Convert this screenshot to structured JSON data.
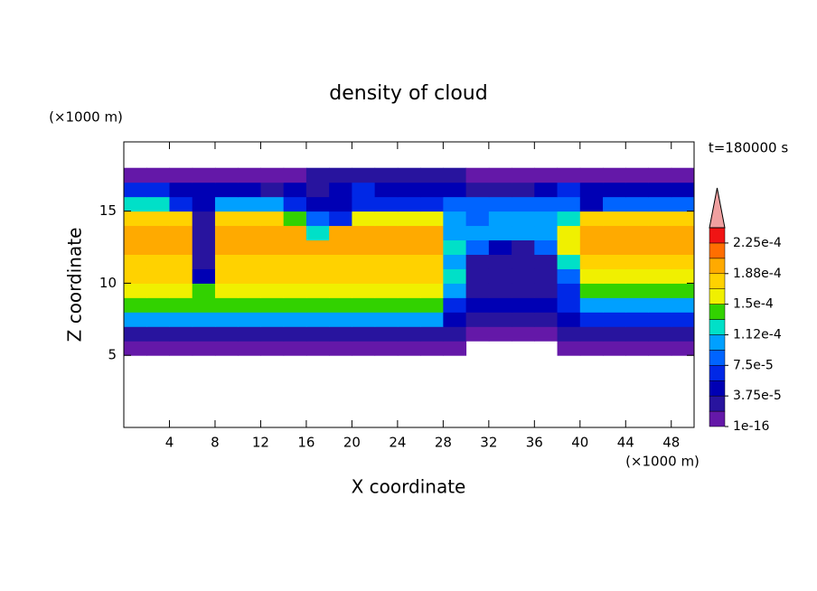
{
  "chart_data": {
    "type": "contour",
    "title": "density of cloud",
    "time_label": "t=180000 s",
    "x_label": "X coordinate",
    "y_label": "Z coordinate",
    "x_unit": "(×1000 m)",
    "y_unit": "(×1000 m)",
    "x": [
      1,
      3,
      5,
      7,
      9,
      11,
      13,
      15,
      17,
      19,
      21,
      23,
      25,
      27,
      29,
      31,
      33,
      35,
      37,
      39,
      41,
      43,
      45,
      47,
      49
    ],
    "z": [
      5.5,
      6.5,
      7.5,
      8.5,
      9.5,
      10.5,
      11.5,
      12.5,
      13.5,
      14.5,
      15.5,
      16.5,
      17.5
    ],
    "values": [
      [
        1e-05,
        1e-05,
        1e-05,
        1e-05,
        1e-05,
        1e-05,
        1e-05,
        1e-05,
        1e-05,
        1e-05,
        1e-05,
        1e-05,
        1e-05,
        1e-05,
        1e-05,
        null,
        null,
        null,
        null,
        1e-05,
        1e-05,
        1e-05,
        1e-05,
        1e-05,
        1e-05
      ],
      [
        3e-05,
        3e-05,
        3e-05,
        3e-05,
        3e-05,
        3e-05,
        3e-05,
        3e-05,
        3e-05,
        3e-05,
        3e-05,
        3e-05,
        3e-05,
        3e-05,
        2e-05,
        1.5e-05,
        1.5e-05,
        1.5e-05,
        1.5e-05,
        3e-05,
        3e-05,
        3e-05,
        3e-05,
        3e-05,
        3e-05
      ],
      [
        0.000105,
        0.000105,
        0.000105,
        0.000105,
        0.000105,
        0.000105,
        0.000105,
        0.000105,
        0.000105,
        0.000105,
        0.000105,
        0.000105,
        0.000105,
        0.000105,
        4e-05,
        3e-05,
        3e-05,
        3e-05,
        3e-05,
        4e-05,
        7e-05,
        7e-05,
        7e-05,
        7e-05,
        7e-05
      ],
      [
        0.000135,
        0.000135,
        0.000135,
        0.000135,
        0.000135,
        0.000135,
        0.000135,
        0.000135,
        0.000135,
        0.000135,
        0.000135,
        0.000135,
        0.000135,
        0.000135,
        7e-05,
        4e-05,
        4e-05,
        4e-05,
        4e-05,
        6e-05,
        0.00011,
        0.00011,
        0.00011,
        0.00011,
        0.00011
      ],
      [
        0.00016,
        0.00016,
        0.00016,
        0.00014,
        0.00016,
        0.00016,
        0.00016,
        0.00016,
        0.00016,
        0.00016,
        0.00016,
        0.00016,
        0.00016,
        0.00016,
        0.0001,
        3e-05,
        3e-05,
        3e-05,
        3e-05,
        6e-05,
        0.000135,
        0.000135,
        0.000135,
        0.000135,
        0.000135
      ],
      [
        0.000175,
        0.000175,
        0.000175,
        5e-05,
        0.000175,
        0.000175,
        0.000175,
        0.000175,
        0.000175,
        0.000175,
        0.000175,
        0.000175,
        0.000175,
        0.000175,
        0.00012,
        2e-05,
        2e-05,
        2e-05,
        2e-05,
        9e-05,
        0.00016,
        0.00016,
        0.00016,
        0.00016,
        0.00016
      ],
      [
        0.00018,
        0.00018,
        0.00018,
        3e-05,
        0.00018,
        0.00018,
        0.00018,
        0.00018,
        0.00018,
        0.00018,
        0.00018,
        0.00018,
        0.00018,
        0.00018,
        0.0001,
        2e-05,
        2e-05,
        2e-05,
        2e-05,
        0.00012,
        0.00018,
        0.00018,
        0.00018,
        0.00018,
        0.00018
      ],
      [
        0.00019,
        0.00019,
        0.00019,
        3e-05,
        0.00019,
        0.00019,
        0.00019,
        0.00019,
        0.00019,
        0.00019,
        0.00019,
        0.00019,
        0.00019,
        0.00019,
        0.00012,
        8e-05,
        5e-05,
        3e-05,
        8e-05,
        0.00015,
        0.00019,
        0.00019,
        0.00019,
        0.00019,
        0.00019
      ],
      [
        0.00019,
        0.00019,
        0.00019,
        2e-05,
        0.00019,
        0.00019,
        0.00019,
        0.00019,
        0.00013,
        0.0002,
        0.0002,
        0.0002,
        0.0002,
        0.0002,
        0.00011,
        0.0001,
        0.0001,
        0.0001,
        0.0001,
        0.00015,
        0.00019,
        0.00019,
        0.00019,
        0.00019,
        0.00019
      ],
      [
        0.00017,
        0.00017,
        0.00017,
        3e-05,
        0.00018,
        0.00018,
        0.00018,
        0.00014,
        8e-05,
        6e-05,
        0.00015,
        0.00015,
        0.00015,
        0.00015,
        0.00011,
        8e-05,
        0.0001,
        0.0001,
        0.0001,
        0.00013,
        0.00017,
        0.00017,
        0.00017,
        0.00017,
        0.00017
      ],
      [
        0.00013,
        0.00013,
        7e-05,
        4e-05,
        0.00011,
        0.00011,
        0.00011,
        7e-05,
        5e-05,
        4e-05,
        7e-05,
        7e-05,
        6e-05,
        6e-05,
        8e-05,
        9e-05,
        9e-05,
        9e-05,
        9e-05,
        8e-05,
        5e-05,
        9e-05,
        9e-05,
        9e-05,
        9e-05
      ],
      [
        6e-05,
        6e-05,
        4e-05,
        5e-05,
        5e-05,
        5e-05,
        3e-05,
        4e-05,
        2e-05,
        4e-05,
        6e-05,
        5e-05,
        5e-05,
        5e-05,
        4e-05,
        2e-05,
        2e-05,
        2e-05,
        4e-05,
        6e-05,
        4e-05,
        5e-05,
        5e-05,
        5e-05,
        5e-05
      ],
      [
        1.5e-05,
        1.5e-05,
        1.5e-05,
        1.5e-05,
        1.5e-05,
        1e-05,
        1e-05,
        1e-05,
        2e-05,
        2e-05,
        2e-05,
        2e-05,
        2e-05,
        2e-05,
        2e-05,
        1.5e-05,
        1.5e-05,
        1.5e-05,
        1.5e-05,
        1.5e-05,
        1.5e-05,
        1.5e-05,
        1.5e-05,
        1.5e-05,
        1.5e-05
      ]
    ],
    "xlim": [
      0,
      50
    ],
    "ylim": [
      0,
      19.8
    ],
    "xticks": [
      4,
      8,
      12,
      16,
      20,
      24,
      28,
      32,
      36,
      40,
      44,
      48
    ],
    "yticks": [
      5,
      10,
      15
    ],
    "colorbar": {
      "levels": [
        1e-16,
        1.875e-05,
        3.75e-05,
        5.625e-05,
        7.5e-05,
        9.375e-05,
        0.0001125,
        0.00013125,
        0.00015,
        0.00016875,
        0.0001875,
        0.00020625,
        0.000225,
        0.00024375
      ],
      "colors": [
        "#6418a8",
        "#28149e",
        "#0000b4",
        "#0028e6",
        "#0064ff",
        "#00a0ff",
        "#00e0c8",
        "#32d200",
        "#f0f000",
        "#ffd200",
        "#ffaa00",
        "#ff6e00",
        "#f01414"
      ],
      "extend_color": "#f0a0a0",
      "ticks": [
        1e-16,
        {
          "value": 3.75e-05,
          "label": "3.75e-5"
        },
        {
          "value": 7.5e-05,
          "label": "7.5e-5"
        },
        {
          "value": 0.0001125,
          "label": "1.12e-4"
        },
        {
          "value": 0.00015,
          "label": "1.5e-4"
        },
        {
          "value": 0.0001875,
          "label": "1.88e-4"
        },
        {
          "value": 0.000225,
          "label": "2.25e-4"
        }
      ]
    }
  }
}
